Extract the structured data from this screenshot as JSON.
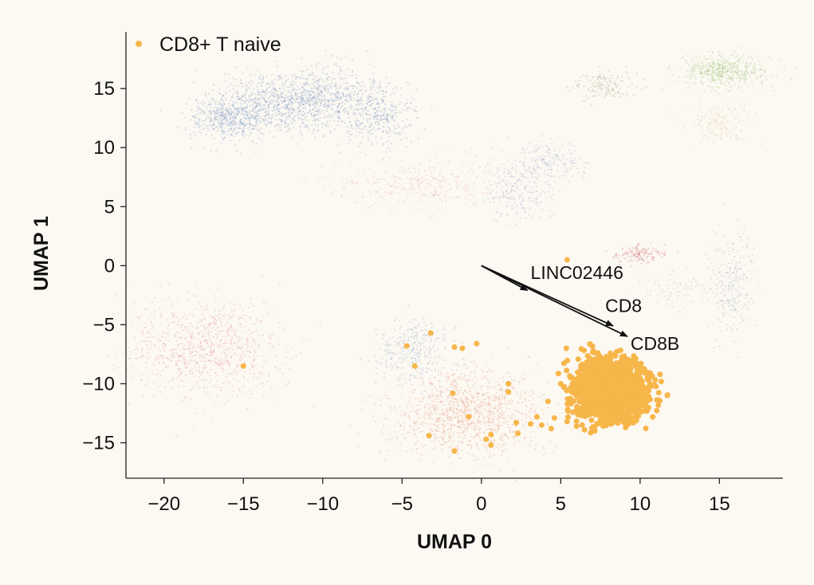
{
  "chart_data": {
    "type": "scatter",
    "title": "",
    "xlabel": "UMAP 0",
    "ylabel": "UMAP 1",
    "xlim": [
      -22.4,
      19
    ],
    "ylim": [
      -18,
      19.8
    ],
    "xticks": [
      -20,
      -15,
      -10,
      -5,
      0,
      5,
      10,
      15
    ],
    "yticks": [
      15,
      10,
      5,
      0,
      -5,
      -10,
      -15
    ],
    "grid": false,
    "legend": {
      "placement": "top-left",
      "entries": [
        {
          "label": "CD8+ T naive",
          "color": "#f7b649"
        }
      ]
    },
    "highlight_color": "#f7b649",
    "highlight_cluster": {
      "center": [
        8.1,
        -10.5
      ],
      "spread": [
        1.1,
        1.3
      ],
      "count": 1500
    },
    "highlight_outliers": [
      [
        -15,
        -8.5
      ],
      [
        -4.7,
        -6.8
      ],
      [
        -3.2,
        -5.7
      ],
      [
        -4.2,
        -8.5
      ],
      [
        -1.7,
        -6.9
      ],
      [
        -1.2,
        -7
      ],
      [
        -0.3,
        -6.6
      ],
      [
        -1.8,
        -10.8
      ],
      [
        -0.8,
        -12.8
      ],
      [
        -3.3,
        -14.4
      ],
      [
        -1.7,
        -15.7
      ],
      [
        0.3,
        -14.7
      ],
      [
        0.6,
        -15.2
      ],
      [
        0.6,
        -14.3
      ],
      [
        1.7,
        -10
      ],
      [
        1.7,
        -10.7
      ],
      [
        2.2,
        -13.3
      ],
      [
        2.3,
        -14.2
      ],
      [
        5.4,
        0.5
      ],
      [
        3.5,
        -12.8
      ],
      [
        4.2,
        -11.5
      ],
      [
        3.8,
        -13.5
      ],
      [
        4.6,
        -12.9
      ],
      [
        5.0,
        -10
      ],
      [
        4.4,
        -13.8
      ],
      [
        5.4,
        -13.2
      ],
      [
        6.0,
        -13.6
      ],
      [
        6.5,
        -13.9
      ],
      [
        3.1,
        -13.4
      ]
    ],
    "background_clusters": [
      {
        "center": [
          -16,
          12.5
        ],
        "spread": [
          1.2,
          0.9
        ],
        "count": 500,
        "color": "#6a8fc0"
      },
      {
        "center": [
          -13,
          13.8
        ],
        "spread": [
          1.8,
          1.2
        ],
        "count": 700,
        "color": "#6a8fc0"
      },
      {
        "center": [
          -9.5,
          14.2
        ],
        "spread": [
          1.8,
          1.2
        ],
        "count": 600,
        "color": "#6a8fc0"
      },
      {
        "center": [
          -6.5,
          12.5
        ],
        "spread": [
          1.2,
          1.2
        ],
        "count": 300,
        "color": "#6a8fc0"
      },
      {
        "center": [
          15.3,
          16.5
        ],
        "spread": [
          1.4,
          0.7
        ],
        "count": 500,
        "color": "#8fbf6a"
      },
      {
        "center": [
          7.8,
          15.3
        ],
        "spread": [
          1.0,
          0.6
        ],
        "count": 150,
        "color": "#8a9a70"
      },
      {
        "center": [
          15,
          12
        ],
        "spread": [
          1.0,
          0.9
        ],
        "count": 150,
        "color": "#d8c08a"
      },
      {
        "center": [
          -17.5,
          -7
        ],
        "spread": [
          2.3,
          2.0
        ],
        "count": 900,
        "color": "#e08a9a"
      },
      {
        "center": [
          -1,
          -12.5
        ],
        "spread": [
          2.4,
          1.9
        ],
        "count": 1200,
        "color": "#e0906a"
      },
      {
        "center": [
          -4.2,
          -7.2
        ],
        "spread": [
          1.2,
          1.3
        ],
        "count": 300,
        "color": "#7d9fc8"
      },
      {
        "center": [
          -3.5,
          7
        ],
        "spread": [
          2.8,
          1.0
        ],
        "count": 350,
        "color": "#e8a0a0"
      },
      {
        "center": [
          2.5,
          6.5
        ],
        "spread": [
          1.2,
          1.5
        ],
        "count": 250,
        "color": "#8fa0c8"
      },
      {
        "center": [
          4.5,
          9
        ],
        "spread": [
          1.0,
          0.8
        ],
        "count": 150,
        "color": "#8fa0c8"
      },
      {
        "center": [
          10,
          1
        ],
        "spread": [
          0.8,
          0.4
        ],
        "count": 150,
        "color": "#c86060"
      },
      {
        "center": [
          15.8,
          -1.5
        ],
        "spread": [
          0.7,
          2.0
        ],
        "count": 250,
        "color": "#90a8b8"
      },
      {
        "center": [
          12.5,
          -2
        ],
        "spread": [
          1.5,
          0.6
        ],
        "count": 100,
        "color": "#b0b8c0"
      }
    ],
    "annotations": [
      {
        "label": "LINC02446",
        "arrow_from": [
          0,
          0
        ],
        "arrow_to": [
          2.9,
          -2.1
        ],
        "text_at": [
          3.1,
          -0.6
        ]
      },
      {
        "label": "CD8",
        "arrow_from": [
          0,
          0
        ],
        "arrow_to": [
          8.3,
          -5.1
        ],
        "text_at": [
          7.8,
          -3.4
        ]
      },
      {
        "label": "CD8B",
        "arrow_from": [
          0,
          0
        ],
        "arrow_to": [
          9.2,
          -6.0
        ],
        "text_at": [
          9.4,
          -6.6
        ]
      }
    ]
  }
}
